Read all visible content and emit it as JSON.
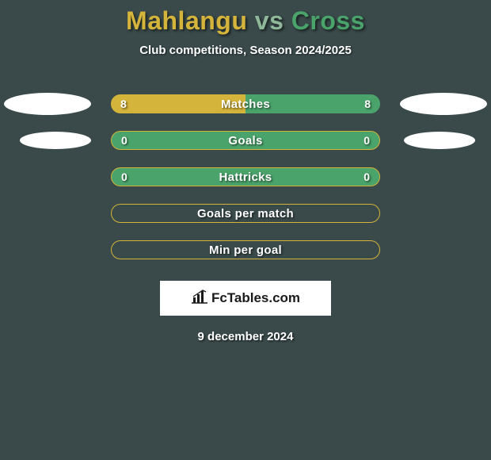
{
  "background_color": "#3a4a4a",
  "title": {
    "player1": "Mahlangu",
    "vs": "vs",
    "player2": "Cross",
    "player1_color": "#d4b43a",
    "vs_color": "#8fb89a",
    "player2_color": "#4aa36a",
    "fontsize": 32
  },
  "subtitle": "Club competitions, Season 2024/2025",
  "pill_colors": {
    "player1_bg": "#d4b43a",
    "player2_bg": "#4aa36a",
    "border_color": "#d4b43a"
  },
  "rows": [
    {
      "label": "Matches",
      "left_value": "8",
      "right_value": "8",
      "left_marker": true,
      "right_marker": true,
      "marker_size": "large",
      "fill": "split"
    },
    {
      "label": "Goals",
      "left_value": "0",
      "right_value": "0",
      "left_marker": true,
      "right_marker": true,
      "marker_size": "small",
      "fill": "green"
    },
    {
      "label": "Hattricks",
      "left_value": "0",
      "right_value": "0",
      "left_marker": false,
      "right_marker": false,
      "fill": "green"
    },
    {
      "label": "Goals per match",
      "left_value": "",
      "right_value": "",
      "left_marker": false,
      "right_marker": false,
      "fill": "outline"
    },
    {
      "label": "Min per goal",
      "left_value": "",
      "right_value": "",
      "left_marker": false,
      "right_marker": false,
      "fill": "outline"
    }
  ],
  "logo": {
    "text": "FcTables.com",
    "icon_name": "bar-chart-icon"
  },
  "date": "9 december 2024",
  "styling": {
    "pill_width": 340,
    "pill_height": 24,
    "pill_radius": 12,
    "marker_large_w": 110,
    "marker_large_h": 28,
    "marker_small_w": 90,
    "marker_small_h": 22,
    "text_shadow": "1.5px 1.5px 2px rgba(0,0,0,0.55)",
    "label_fontsize": 15,
    "value_fontsize": 14
  }
}
